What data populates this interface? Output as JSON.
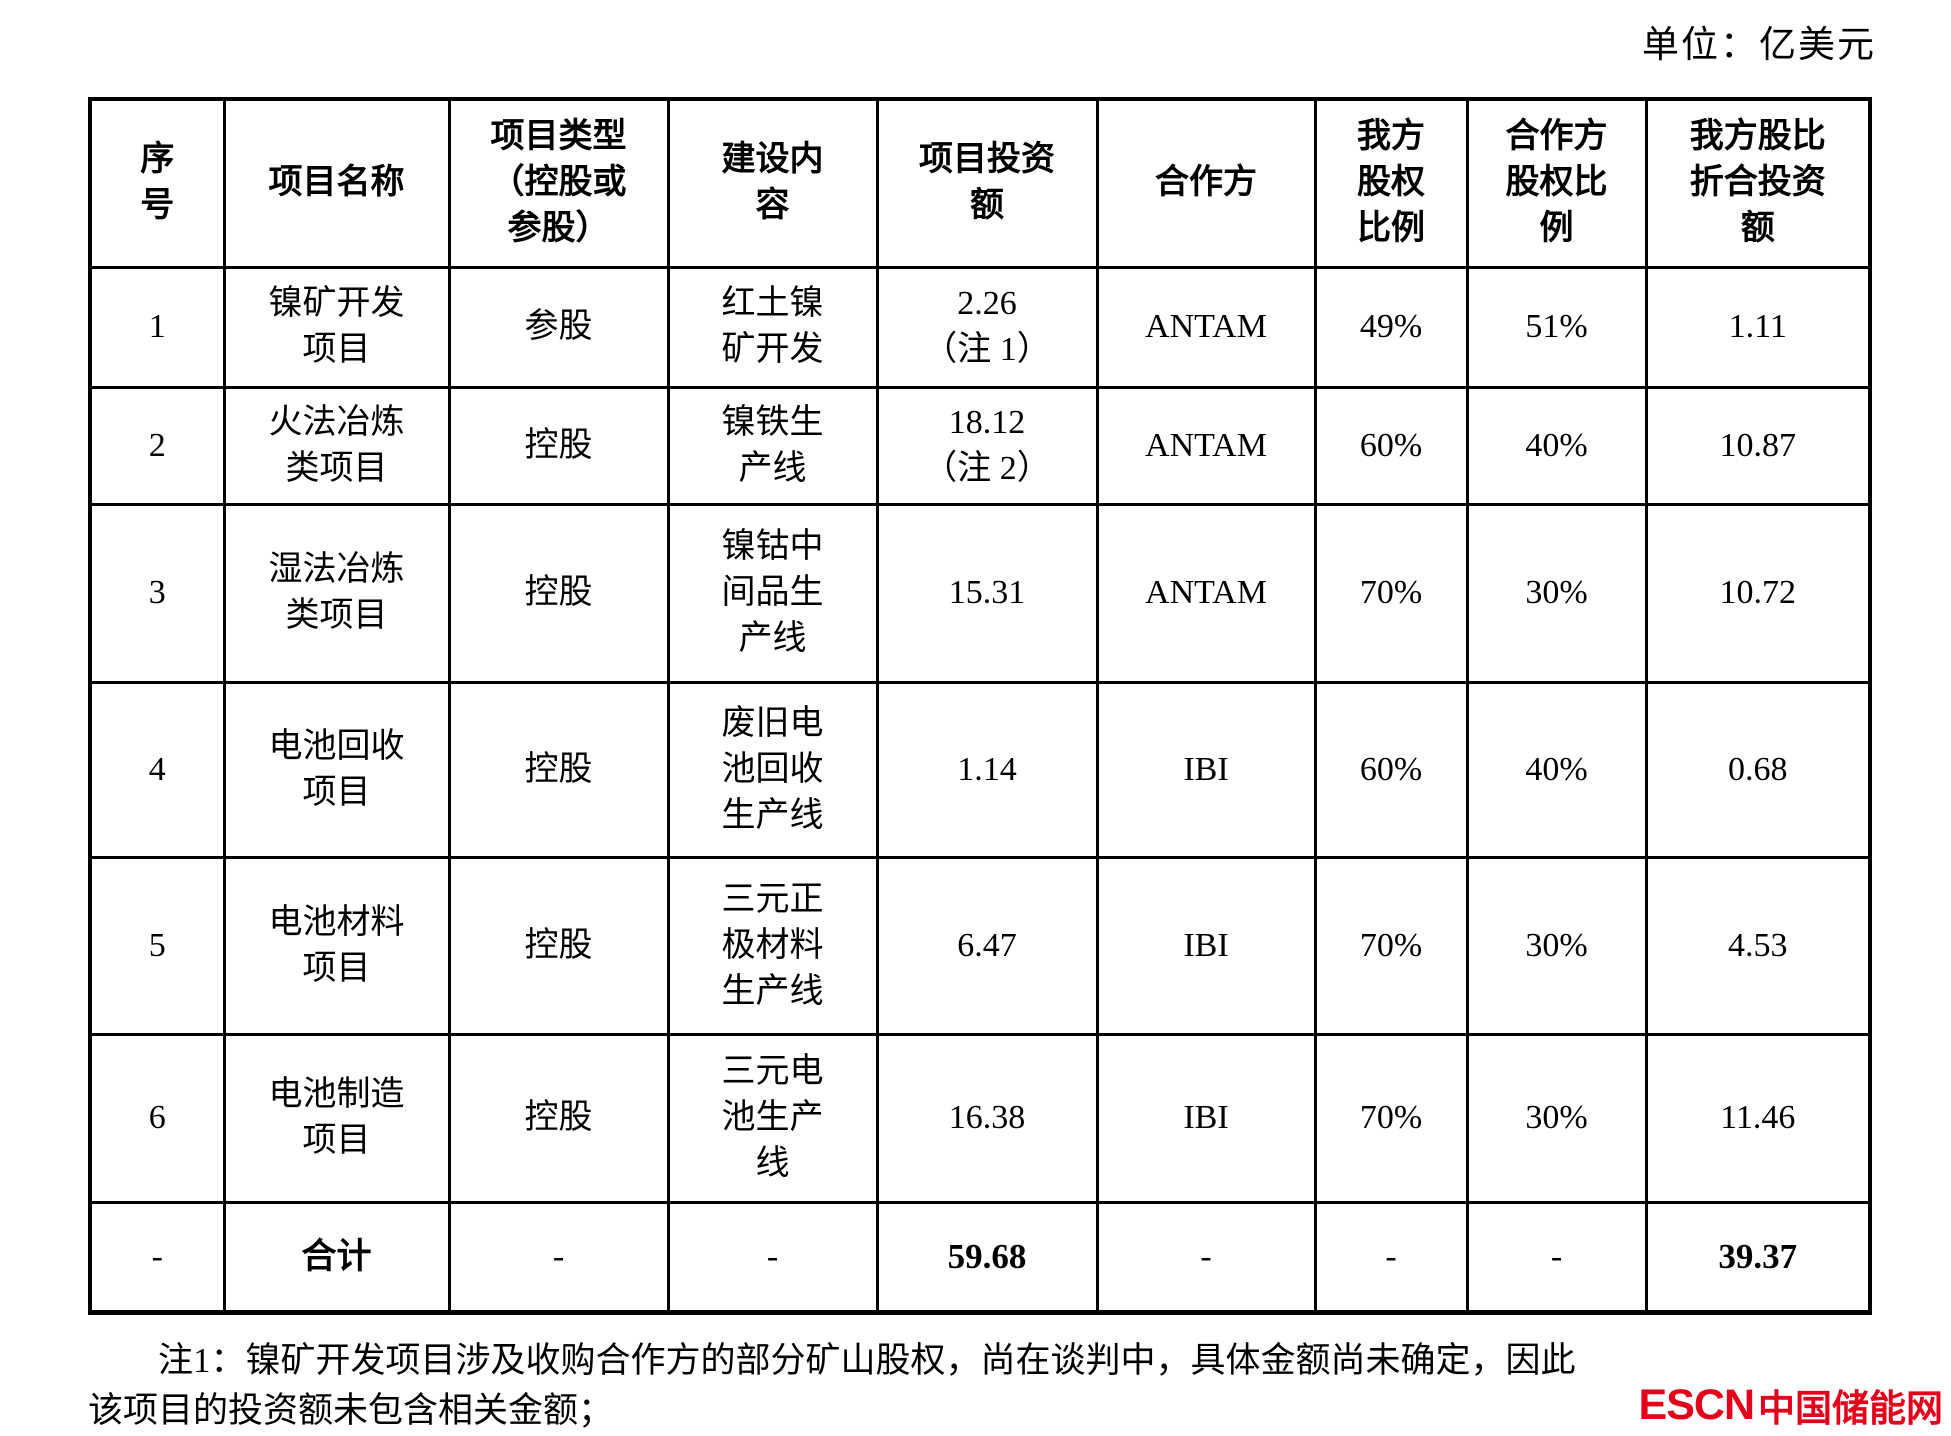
{
  "unit_label": "单位：亿美元",
  "table": {
    "headers": [
      "序\n号",
      "项目名称",
      "项目类型\n（控股或\n参股）",
      "建设内\n容",
      "项目投资\n额",
      "合作方",
      "我方\n股权\n比例",
      "合作方\n股权比\n例",
      "我方股比\n折合投资\n额"
    ],
    "rows": [
      {
        "no": "1",
        "name": "镍矿开发\n项目",
        "type": "参股",
        "content": "红土镍\n矿开发",
        "investment": "2.26\n（注 1）",
        "partner": "ANTAM",
        "our_share": "49%",
        "partner_share": "51%",
        "our_investment": "1.11"
      },
      {
        "no": "2",
        "name": "火法冶炼\n类项目",
        "type": "控股",
        "content": "镍铁生\n产线",
        "investment": "18.12\n（注 2）",
        "partner": "ANTAM",
        "our_share": "60%",
        "partner_share": "40%",
        "our_investment": "10.87"
      },
      {
        "no": "3",
        "name": "湿法冶炼\n类项目",
        "type": "控股",
        "content": "镍钴中\n间品生\n产线",
        "investment": "15.31",
        "partner": "ANTAM",
        "our_share": "70%",
        "partner_share": "30%",
        "our_investment": "10.72"
      },
      {
        "no": "4",
        "name": "电池回收\n项目",
        "type": "控股",
        "content": "废旧电\n池回收\n生产线",
        "investment": "1.14",
        "partner": "IBI",
        "our_share": "60%",
        "partner_share": "40%",
        "our_investment": "0.68"
      },
      {
        "no": "5",
        "name": "电池材料\n项目",
        "type": "控股",
        "content": "三元正\n极材料\n生产线",
        "investment": "6.47",
        "partner": "IBI",
        "our_share": "70%",
        "partner_share": "30%",
        "our_investment": "4.53"
      },
      {
        "no": "6",
        "name": "电池制造\n项目",
        "type": "控股",
        "content": "三元电\n池生产\n线",
        "investment": "16.38",
        "partner": "IBI",
        "our_share": "70%",
        "partner_share": "30%",
        "our_investment": "11.46"
      }
    ],
    "total": {
      "no": "-",
      "name": "合计",
      "type": "-",
      "content": "-",
      "investment": "59.68",
      "partner": "-",
      "our_share": "-",
      "partner_share": "-",
      "our_investment": "39.37"
    }
  },
  "notes_text": "注1：镍矿开发项目涉及收购合作方的部分矿山股权，尚在谈判中，具体金额尚未确定，因此\n该项目的投资额未包含相关金额；",
  "logo": {
    "escn": "ESCN",
    "cn": "中国储能网",
    "color": "#e2001a"
  }
}
